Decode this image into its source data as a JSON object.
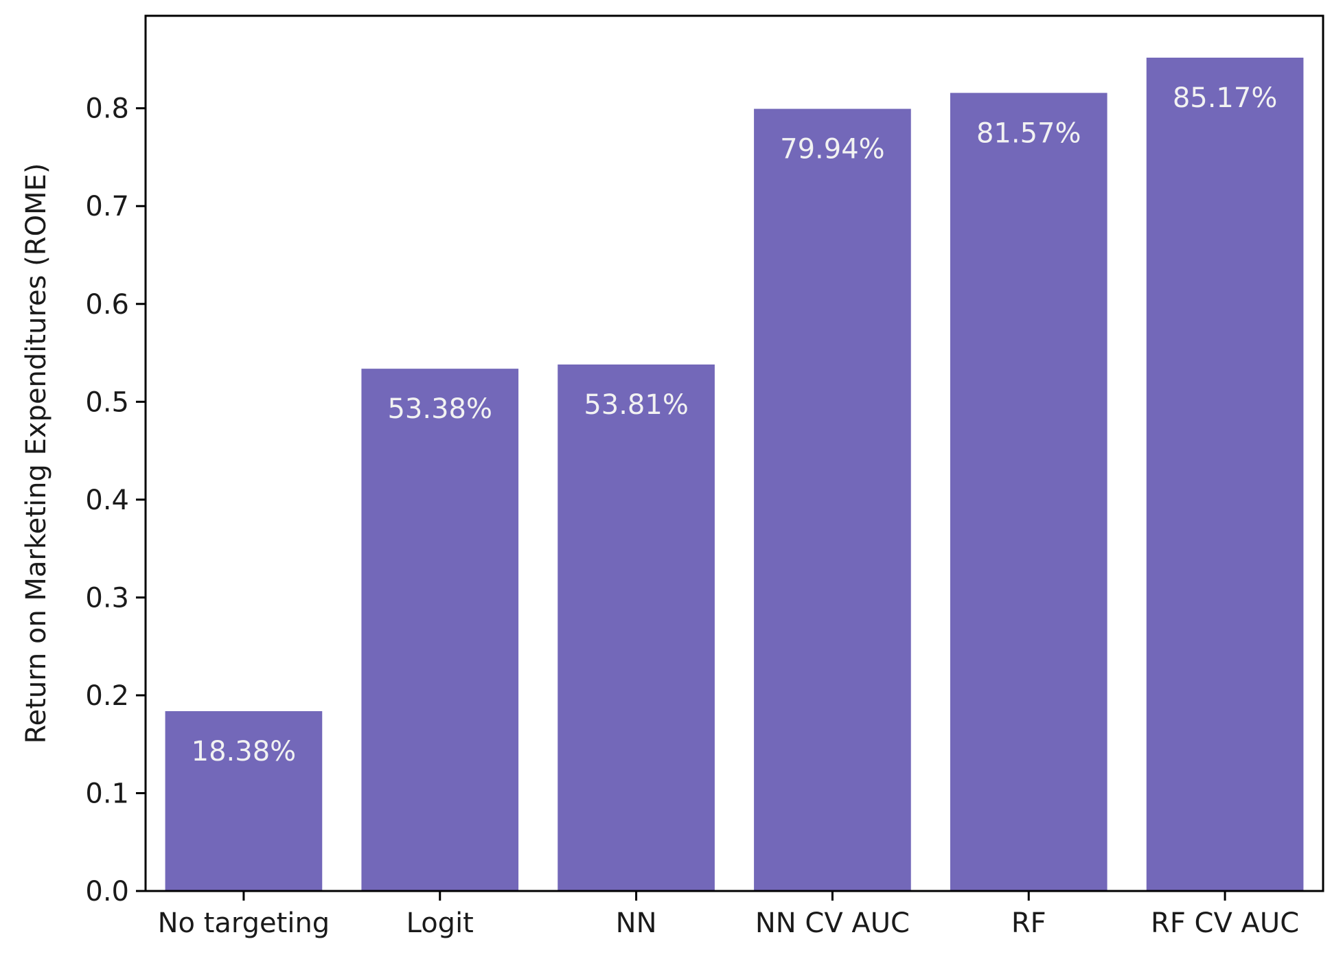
{
  "chart_data": {
    "type": "bar",
    "title": "",
    "xlabel": "",
    "ylabel": "Return on Marketing Expenditures (ROME)",
    "categories": [
      "No targeting",
      "Logit",
      "NN",
      "NN CV AUC",
      "RF",
      "RF CV AUC"
    ],
    "values": [
      0.1838,
      0.5338,
      0.5381,
      0.7994,
      0.8157,
      0.8517
    ],
    "bar_labels": [
      "18.38%",
      "53.38%",
      "53.81%",
      "79.94%",
      "81.57%",
      "85.17%"
    ],
    "yticks": [
      "0.0",
      "0.1",
      "0.2",
      "0.3",
      "0.4",
      "0.5",
      "0.6",
      "0.7",
      "0.8"
    ],
    "ylim": [
      0,
      0.8945
    ],
    "grid": false,
    "colors": {
      "bar": "#7368b9",
      "axis": "#000000"
    }
  }
}
